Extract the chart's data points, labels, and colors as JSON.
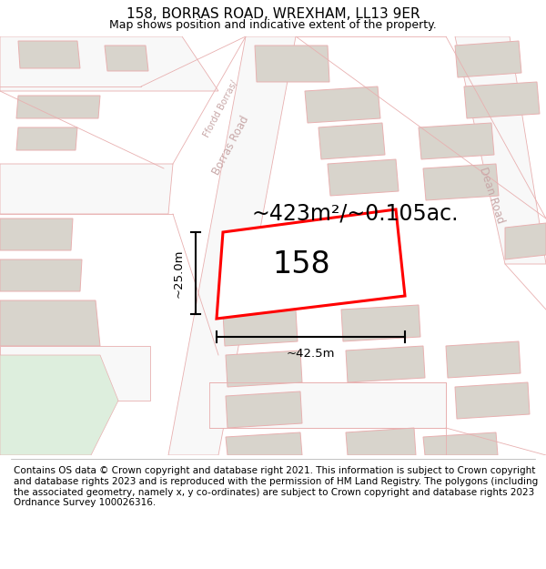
{
  "title": "158, BORRAS ROAD, WREXHAM, LL13 9ER",
  "subtitle": "Map shows position and indicative extent of the property.",
  "footer": "Contains OS data © Crown copyright and database right 2021. This information is subject to Crown copyright and database rights 2023 and is reproduced with the permission of HM Land Registry. The polygons (including the associated geometry, namely x, y co-ordinates) are subject to Crown copyright and database rights 2023 Ordnance Survey 100026316.",
  "area_label": "~423m²/~0.105ac.",
  "plot_number": "158",
  "dim_width": "~42.5m",
  "dim_height": "~25.0m",
  "map_bg": "#eeece6",
  "road_fill": "#f8f8f8",
  "road_edge": "#e8b0b0",
  "plot_color": "#ff0000",
  "building_fill": "#d8d4cc",
  "building_edge": "#e8b0b0",
  "green_fill": "#ddeedd",
  "road_label_color": "#c8a8a8",
  "title_fontsize": 11,
  "subtitle_fontsize": 9,
  "footer_fontsize": 7.5,
  "area_fontsize": 17,
  "plot_num_fontsize": 24,
  "dim_fontsize": 9.5
}
